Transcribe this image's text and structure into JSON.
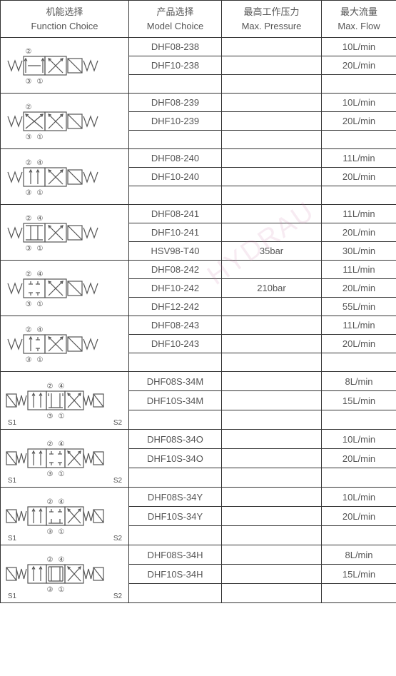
{
  "headers": {
    "function": {
      "cn": "机能选择",
      "en": "Function Choice"
    },
    "model": {
      "cn": "产品选择",
      "en": "Model Choice"
    },
    "pressure": {
      "cn": "最高工作压力",
      "en": "Max. Pressure"
    },
    "flow": {
      "cn": "最大流量",
      "en": "Max. Flow"
    }
  },
  "watermark": "HYDRAU",
  "colors": {
    "line": "#555555",
    "border": "#333333",
    "text": "#555555"
  },
  "groups": [
    {
      "symbol_type": "A",
      "ports_top": [
        "②"
      ],
      "ports_bot": [
        "③",
        "①"
      ],
      "rows": [
        {
          "model": "DHF08-238",
          "pressure": "",
          "flow": "10L/min"
        },
        {
          "model": "DHF10-238",
          "pressure": "",
          "flow": "20L/min"
        },
        {
          "model": "",
          "pressure": "",
          "flow": ""
        }
      ]
    },
    {
      "symbol_type": "B",
      "ports_top": [
        "②"
      ],
      "ports_bot": [
        "③",
        "①"
      ],
      "rows": [
        {
          "model": "DHF08-239",
          "pressure": "",
          "flow": "10L/min"
        },
        {
          "model": "DHF10-239",
          "pressure": "",
          "flow": "20L/min"
        },
        {
          "model": "",
          "pressure": "",
          "flow": ""
        }
      ]
    },
    {
      "symbol_type": "C",
      "ports_top": [
        "②",
        "④"
      ],
      "ports_bot": [
        "③",
        "①"
      ],
      "rows": [
        {
          "model": "DHF08-240",
          "pressure": "",
          "flow": "11L/min"
        },
        {
          "model": "DHF10-240",
          "pressure": "",
          "flow": "20L/min"
        },
        {
          "model": "",
          "pressure": "",
          "flow": ""
        }
      ]
    },
    {
      "symbol_type": "D",
      "ports_top": [
        "②",
        "④"
      ],
      "ports_bot": [
        "③",
        "①"
      ],
      "rows": [
        {
          "model": "DHF08-241",
          "pressure": "",
          "flow": "11L/min"
        },
        {
          "model": "DHF10-241",
          "pressure": "",
          "flow": "20L/min"
        },
        {
          "model": "HSV98-T40",
          "pressure": "35bar",
          "flow": "30L/min"
        }
      ]
    },
    {
      "symbol_type": "E",
      "ports_top": [
        "②",
        "④"
      ],
      "ports_bot": [
        "③",
        "①"
      ],
      "rows": [
        {
          "model": "DHF08-242",
          "pressure": "",
          "flow": "11L/min"
        },
        {
          "model": "DHF10-242",
          "pressure": "210bar",
          "flow": "20L/min"
        },
        {
          "model": "DHF12-242",
          "pressure": "",
          "flow": "55L/min"
        }
      ]
    },
    {
      "symbol_type": "F",
      "ports_top": [
        "②",
        "④"
      ],
      "ports_bot": [
        "③",
        "①"
      ],
      "rows": [
        {
          "model": "DHF08-243",
          "pressure": "",
          "flow": "11L/min"
        },
        {
          "model": "DHF10-243",
          "pressure": "",
          "flow": "20L/min"
        },
        {
          "model": "",
          "pressure": "",
          "flow": ""
        }
      ]
    },
    {
      "symbol_type": "G",
      "ports_top": [
        "②",
        "④"
      ],
      "ports_bot": [
        "③",
        "①"
      ],
      "solenoids": [
        "S1",
        "S2"
      ],
      "rows": [
        {
          "model": "DHF08S-34M",
          "pressure": "",
          "flow": "8L/min"
        },
        {
          "model": "DHF10S-34M",
          "pressure": "",
          "flow": "15L/min"
        },
        {
          "model": "",
          "pressure": "",
          "flow": ""
        }
      ]
    },
    {
      "symbol_type": "H",
      "ports_top": [
        "②",
        "④"
      ],
      "ports_bot": [
        "③",
        "①"
      ],
      "solenoids": [
        "S1",
        "S2"
      ],
      "rows": [
        {
          "model": "DHF08S-34O",
          "pressure": "",
          "flow": "10L/min"
        },
        {
          "model": "DHF10S-34O",
          "pressure": "",
          "flow": "20L/min"
        },
        {
          "model": "",
          "pressure": "",
          "flow": ""
        }
      ]
    },
    {
      "symbol_type": "I",
      "ports_top": [
        "②",
        "④"
      ],
      "ports_bot": [
        "③",
        "①"
      ],
      "solenoids": [
        "S1",
        "S2"
      ],
      "rows": [
        {
          "model": "DHF08S-34Y",
          "pressure": "",
          "flow": "10L/min"
        },
        {
          "model": "DHF10S-34Y",
          "pressure": "",
          "flow": "20L/min"
        },
        {
          "model": "",
          "pressure": "",
          "flow": ""
        }
      ]
    },
    {
      "symbol_type": "J",
      "ports_top": [
        "②",
        "④"
      ],
      "ports_bot": [
        "③",
        "①"
      ],
      "solenoids": [
        "S1",
        "S2"
      ],
      "rows": [
        {
          "model": "DHF08S-34H",
          "pressure": "",
          "flow": "8L/min"
        },
        {
          "model": "DHF10S-34H",
          "pressure": "",
          "flow": "15L/min"
        },
        {
          "model": "",
          "pressure": "",
          "flow": ""
        }
      ]
    }
  ]
}
